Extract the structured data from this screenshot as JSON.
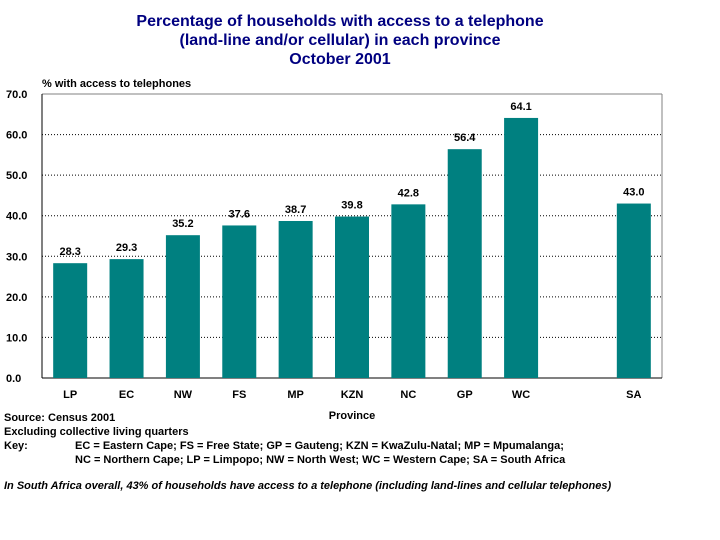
{
  "chart_data": {
    "type": "bar",
    "title_lines": [
      "Percentage of households with access to a telephone",
      "(land-line and/or cellular) in each province",
      "October 2001"
    ],
    "ylabel": "% with access to telephones",
    "xlabel": "Province",
    "ylim": [
      0,
      70
    ],
    "yticks": [
      "0.0",
      "10.0",
      "20.0",
      "30.0",
      "40.0",
      "50.0",
      "60.0",
      "70.0"
    ],
    "categories": [
      "LP",
      "EC",
      "NW",
      "FS",
      "MP",
      "KZN",
      "NC",
      "GP",
      "WC",
      "SA"
    ],
    "values": [
      28.3,
      29.3,
      35.2,
      37.6,
      38.7,
      39.8,
      42.8,
      56.4,
      64.1,
      43.0
    ],
    "value_labels": [
      "28.3",
      "29.3",
      "35.2",
      "37.6",
      "38.7",
      "39.8",
      "42.8",
      "56.4",
      "64.1",
      "43.0"
    ],
    "bar_color": "#008080",
    "title_color": "#000080",
    "gridlines": "dotted horizontal"
  },
  "notes": {
    "source": "Source: Census 2001",
    "excluding": "Excluding collective living quarters",
    "key_label": "Key:",
    "key_line1": "EC = Eastern Cape; FS = Free State; GP = Gauteng; KZN = KwaZulu-Natal; MP = Mpumalanga;",
    "key_line2": "NC = Northern Cape; LP = Limpopo; NW = North West; WC = Western Cape;  SA = South Africa",
    "summary": "In South Africa overall, 43% of households have access to a telephone (including land-lines and cellular telephones)"
  }
}
